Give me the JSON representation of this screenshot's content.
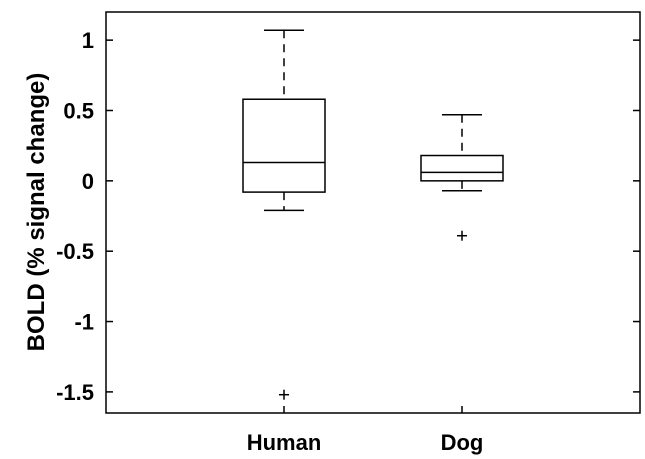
{
  "chart_data": {
    "type": "box",
    "title": "",
    "xlabel": "",
    "ylabel": "BOLD (% signal change)",
    "ylim": [
      -1.65,
      1.2
    ],
    "yticks": [
      1,
      0.5,
      0,
      -0.5,
      -1,
      -1.5
    ],
    "ytick_labels": [
      "1",
      "0.5",
      "0",
      "-0.5",
      "-1",
      "-1.5"
    ],
    "categories": [
      "Human",
      "Dog"
    ],
    "boxes": [
      {
        "category": "Human",
        "whisker_low": -0.21,
        "q1": -0.08,
        "median": 0.13,
        "q3": 0.58,
        "whisker_high": 1.07,
        "outliers": [
          -1.52
        ]
      },
      {
        "category": "Dog",
        "whisker_low": -0.07,
        "q1": 0.0,
        "median": 0.06,
        "q3": 0.18,
        "whisker_high": 0.47,
        "outliers": [
          -0.39
        ]
      }
    ],
    "grid": false,
    "legend": "none"
  }
}
